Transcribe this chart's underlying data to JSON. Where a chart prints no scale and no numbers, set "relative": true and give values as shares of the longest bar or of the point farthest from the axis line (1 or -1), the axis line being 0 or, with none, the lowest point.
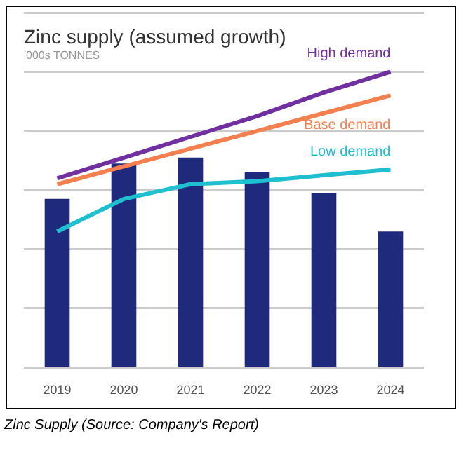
{
  "chart_data": {
    "type": "bar",
    "title": "Zinc supply (assumed growth)",
    "subtitle": "'000s TONNES",
    "annotations": [
      "Zinc Supply (Source: Company's Report)"
    ],
    "relative": true,
    "grid": "y",
    "legend": false,
    "categories": [
      "2019",
      "2020",
      "2021",
      "2022",
      "2023",
      "2024"
    ],
    "series": [
      {
        "color": "#1f2a7c",
        "values": [
          0.57,
          0.69,
          0.71,
          0.66,
          0.59,
          0.46
        ]
      },
      {
        "type": "line",
        "name": "High demand",
        "color": "#7030a0",
        "values": [
          0.64,
          0.71,
          0.78,
          0.85,
          0.93,
          1
        ]
      },
      {
        "type": "line",
        "name": "Base demand",
        "color": "#f4804f",
        "values": [
          0.62,
          0.68,
          0.74,
          0.8,
          0.86,
          0.92
        ]
      },
      {
        "type": "line",
        "name": "Low demand",
        "color": "#1fbfcf",
        "values": [
          0.46,
          0.57,
          0.62,
          0.63,
          0.65,
          0.67
        ]
      }
    ]
  }
}
